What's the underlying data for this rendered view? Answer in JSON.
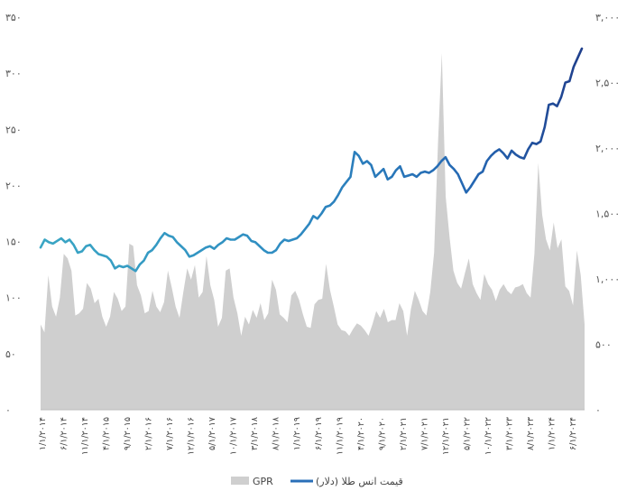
{
  "chart_data": {
    "type": "area+line",
    "title": "",
    "xlabel": "",
    "ylabel_left": "",
    "ylabel_right": "",
    "ylim_left": [
      0,
      350
    ],
    "ylim_right": [
      0,
      3000
    ],
    "left_ticks": [
      "۰",
      "۵۰",
      "۱۰۰",
      "۱۵۰",
      "۲۰۰",
      "۲۵۰",
      "۳۰۰",
      "۳۵۰"
    ],
    "right_ticks": [
      "۰",
      "۵۰۰",
      "۱,۰۰۰",
      "۱,۵۰۰",
      "۲,۰۰۰",
      "۲,۵۰۰",
      "۳,۰۰۰"
    ],
    "x_labels": [
      "۱/۱/۲۰۱۴",
      "۶/۱/۲۰۱۴",
      "۱۱/۱/۲۰۱۴",
      "۴/۱/۲۰۱۵",
      "۹/۱/۲۰۱۵",
      "۲/۱/۲۰۱۶",
      "۷/۱/۲۰۱۶",
      "۱۲/۱/۲۰۱۶",
      "۵/۱/۲۰۱۷",
      "۱۰/۱/۲۰۱۷",
      "۳/۱/۲۰۱۸",
      "۸/۱/۲۰۱۸",
      "۱/۱/۲۰۱۹",
      "۶/۱/۲۰۱۹",
      "۱۱/۱/۲۰۱۹",
      "۴/۱/۲۰۲۰",
      "۹/۱/۲۰۲۰",
      "۲/۱/۲۰۲۱",
      "۷/۱/۲۰۲۱",
      "۱۲/۱/۲۰۲۱",
      "۵/۱/۲۰۲۲",
      "۱۰/۱/۲۰۲۲",
      "۳/۱/۲۰۲۳",
      "۸/۱/۲۰۲۳",
      "۱/۱/۲۰۲۴",
      "۶/۱/۲۰۲۴"
    ],
    "legend_position": "bottom",
    "grid": false,
    "series": [
      {
        "name": "GPR",
        "axis": "left",
        "kind": "area",
        "color": "#cfcfcf",
        "values": [
          76,
          69,
          120,
          92,
          83,
          100,
          139,
          135,
          124,
          84,
          86,
          90,
          113,
          108,
          95,
          99,
          83,
          74,
          83,
          105,
          99,
          88,
          92,
          148,
          146,
          111,
          102,
          86,
          88,
          106,
          92,
          87,
          96,
          124,
          109,
          92,
          82,
          105,
          126,
          116,
          129,
          100,
          105,
          137,
          111,
          98,
          74,
          82,
          124,
          126,
          100,
          86,
          66,
          83,
          76,
          89,
          82,
          95,
          80,
          86,
          116,
          107,
          85,
          82,
          78,
          102,
          106,
          98,
          85,
          74,
          73,
          94,
          98,
          99,
          130,
          107,
          92,
          76,
          71,
          70,
          66,
          72,
          77,
          75,
          71,
          66,
          76,
          88,
          82,
          90,
          78,
          80,
          80,
          95,
          88,
          66,
          90,
          106,
          98,
          88,
          84,
          105,
          140,
          237,
          318,
          190,
          154,
          124,
          113,
          108,
          122,
          135,
          112,
          104,
          98,
          121,
          112,
          107,
          97,
          107,
          112,
          106,
          103,
          109,
          110,
          112,
          104,
          100,
          139,
          220,
          174,
          152,
          142,
          167,
          144,
          152,
          110,
          106,
          93,
          142,
          120,
          76
        ]
      },
      {
        "name": "قیمت انس طلا (دلار)",
        "axis": "right",
        "kind": "line",
        "color": "#2a7fbf",
        "values": [
          1240,
          1300,
          1280,
          1270,
          1290,
          1310,
          1280,
          1300,
          1260,
          1200,
          1210,
          1250,
          1260,
          1220,
          1190,
          1180,
          1170,
          1140,
          1080,
          1100,
          1090,
          1100,
          1080,
          1060,
          1110,
          1140,
          1200,
          1220,
          1260,
          1310,
          1350,
          1330,
          1320,
          1280,
          1250,
          1220,
          1170,
          1180,
          1200,
          1220,
          1240,
          1250,
          1230,
          1260,
          1280,
          1310,
          1300,
          1300,
          1320,
          1340,
          1330,
          1290,
          1280,
          1250,
          1220,
          1200,
          1200,
          1220,
          1270,
          1300,
          1290,
          1300,
          1310,
          1340,
          1380,
          1420,
          1480,
          1460,
          1500,
          1550,
          1560,
          1590,
          1640,
          1700,
          1740,
          1780,
          1970,
          1940,
          1880,
          1900,
          1870,
          1780,
          1810,
          1840,
          1760,
          1780,
          1830,
          1860,
          1780,
          1790,
          1800,
          1780,
          1810,
          1820,
          1810,
          1830,
          1860,
          1900,
          1930,
          1870,
          1840,
          1800,
          1730,
          1660,
          1700,
          1750,
          1800,
          1820,
          1900,
          1940,
          1970,
          1990,
          1960,
          1920,
          1980,
          1950,
          1930,
          1920,
          1990,
          2040,
          2030,
          2050,
          2160,
          2330,
          2340,
          2320,
          2390,
          2500,
          2510,
          2620,
          2690,
          2760
        ]
      }
    ]
  },
  "legend": {
    "gpr_label": "GPR",
    "gold_label": "قیمت انس طلا (دلار)"
  }
}
